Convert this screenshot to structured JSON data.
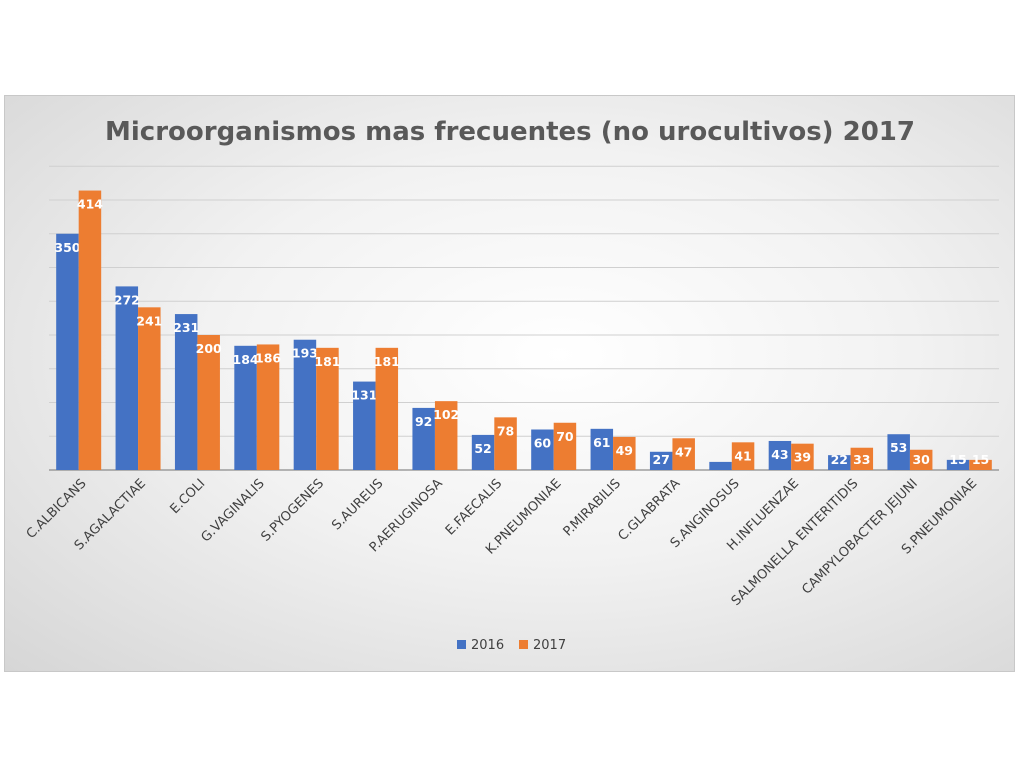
{
  "chart_data": {
    "type": "bar",
    "title": "Microorganismos mas frecuentes (no urocultivos) 2017",
    "categories": [
      "C.ALBICANS",
      "S.AGALACTIAE",
      "E.COLI",
      "G.VAGINALIS",
      "S.PYOGENES",
      "S.AUREUS",
      "P.AERUGINOSA",
      "E.FAECALIS",
      "K.PNEUMONIAE",
      "P.MIRABILIS",
      "C.GLABRATA",
      "S.ANGINOSUS",
      "H.INFLUENZAE",
      "SALMONELLA ENTERITIDIS",
      "CAMPYLOBACTER JEJUNI",
      "S.PNEUMONIAE"
    ],
    "series": [
      {
        "name": "2016",
        "color": "#4472c4",
        "values": [
          350,
          272,
          231,
          184,
          193,
          131,
          92,
          52,
          60,
          61,
          27,
          12,
          43,
          22,
          53,
          15
        ],
        "labels": [
          "350",
          "272",
          "231",
          "184",
          "193",
          "131",
          "92",
          "52",
          "60",
          "61",
          "27",
          "",
          "43",
          "22",
          "53",
          "15"
        ]
      },
      {
        "name": "2017",
        "color": "#ed7d31",
        "values": [
          414,
          241,
          200,
          186,
          181,
          181,
          102,
          78,
          70,
          49,
          47,
          41,
          39,
          33,
          30,
          15
        ],
        "labels": [
          "414",
          "241",
          "200",
          "186",
          "181",
          "181",
          "102",
          "78",
          "70",
          "49",
          "47",
          "41",
          "39",
          "33",
          "30",
          "15"
        ]
      }
    ],
    "ylim": [
      0,
      450
    ],
    "ytick_step": 50,
    "grid": true,
    "legend": "bottom"
  }
}
